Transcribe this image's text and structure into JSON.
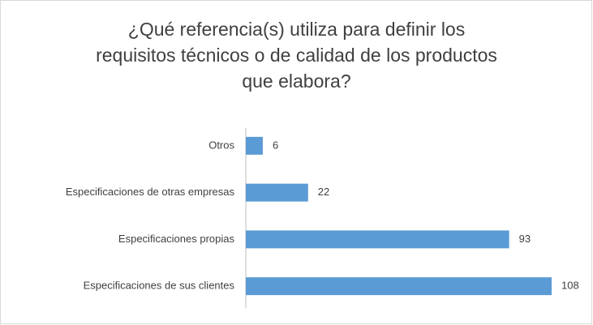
{
  "chart_data": {
    "type": "bar",
    "orientation": "horizontal",
    "title": "¿Qué referencia(s) utiliza para definir los\nrequisitos técnicos o de calidad de los productos\nque elabora?",
    "categories": [
      "Otros",
      "Especificaciones de otras empresas",
      "Especificaciones propias",
      "Especificaciones de sus clientes"
    ],
    "values": [
      6,
      22,
      93,
      108
    ],
    "color": "#5b9bd5"
  }
}
